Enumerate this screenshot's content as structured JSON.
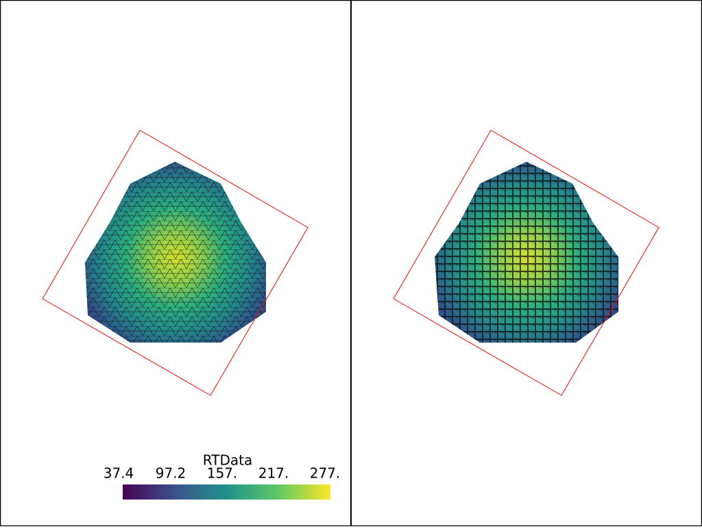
{
  "scalar_bar": {
    "title": "RTData",
    "labels": [
      "37.4",
      "97.2",
      "157.",
      "217.",
      "277."
    ]
  }
}
